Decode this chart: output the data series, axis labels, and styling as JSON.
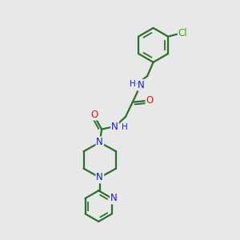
{
  "bg_color": "#e8e8e8",
  "bond_color": "#2d6e2d",
  "n_color": "#1a1acc",
  "o_color": "#cc1a1a",
  "cl_color": "#44aa00",
  "linewidth": 1.6,
  "fontsize": 8.5,
  "figsize": [
    3.0,
    3.0
  ],
  "dpi": 100,
  "xlim": [
    0,
    10
  ],
  "ylim": [
    0,
    10
  ]
}
